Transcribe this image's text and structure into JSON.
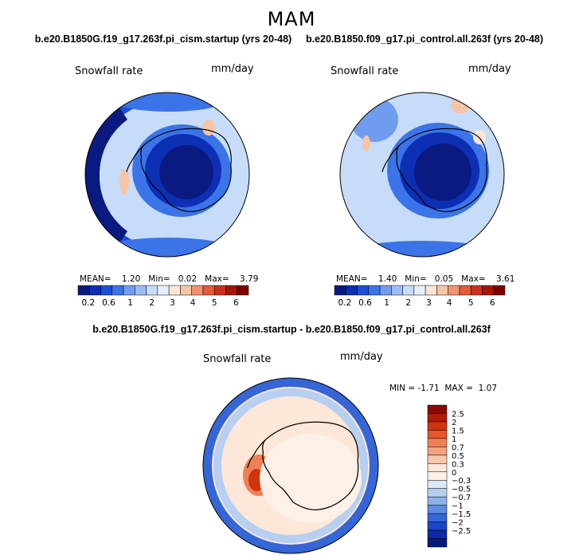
{
  "season": "MAM",
  "panels": [
    {
      "title": "b.e20.B1850G.f19_g17.263f.pi_cism.startup (yrs 20-48)",
      "variable": "Snowfall rate",
      "units": "mm/day",
      "mean_label": "MEAN=",
      "mean_value": "1.20",
      "min_label": "Min=",
      "min_value": "0.02",
      "max_label": "Max=",
      "max_value": "3.79"
    },
    {
      "title": "b.e20.B1850.f09_g17.pi_control.all.263f (yrs 20-48)",
      "variable": "Snowfall rate",
      "units": "mm/day",
      "mean_label": "MEAN=",
      "mean_value": "1.40",
      "min_label": "Min=",
      "min_value": "0.05",
      "max_label": "Max=",
      "max_value": "3.61"
    }
  ],
  "diff_panel": {
    "title": "b.e20.B1850G.f19_g17.263f.pi_cism.startup - b.e20.B1850.f09_g17.pi_control.all.263f",
    "variable": "Snowfall rate",
    "units": "mm/day",
    "min_label": "MIN =",
    "min_value": "-1.71",
    "max_label": "MAX =",
    "max_value": "1.07"
  },
  "chart_data": [
    {
      "type": "heatmap",
      "projection": "south-polar-stereographic",
      "title": "b.e20.B1850G.f19_g17.263f.pi_cism.startup (yrs 20-48)",
      "variable": "Snowfall rate",
      "units": "mm/day",
      "mean": 1.2,
      "min": 0.02,
      "max": 3.79,
      "levels": [
        0.2,
        0.6,
        1,
        1.5,
        2,
        2.5,
        3,
        3.5,
        4,
        4.5,
        5,
        5.5,
        6
      ],
      "level_labels": [
        "0.2",
        "0.6",
        "1",
        "2",
        "3",
        "4",
        "5",
        "6"
      ],
      "colorbar": [
        "#0a1a80",
        "#0d2fb4",
        "#1a4fd8",
        "#3b74e8",
        "#6f9cef",
        "#9cbdf4",
        "#c7dcf8",
        "#e6effa",
        "#fde6d6",
        "#f8c4a6",
        "#f3926c",
        "#e45a3a",
        "#c9311c",
        "#a31608",
        "#7a0000"
      ],
      "colorbar_orientation": "horizontal"
    },
    {
      "type": "heatmap",
      "projection": "south-polar-stereographic",
      "title": "b.e20.B1850.f09_g17.pi_control.all.263f (yrs 20-48)",
      "variable": "Snowfall rate",
      "units": "mm/day",
      "mean": 1.4,
      "min": 0.05,
      "max": 3.61,
      "levels": [
        0.2,
        0.6,
        1,
        1.5,
        2,
        2.5,
        3,
        3.5,
        4,
        4.5,
        5,
        5.5,
        6
      ],
      "level_labels": [
        "0.2",
        "0.6",
        "1",
        "2",
        "3",
        "4",
        "5",
        "6"
      ],
      "colorbar": [
        "#0a1a80",
        "#0d2fb4",
        "#1a4fd8",
        "#3b74e8",
        "#6f9cef",
        "#9cbdf4",
        "#c7dcf8",
        "#e6effa",
        "#fde6d6",
        "#f8c4a6",
        "#f3926c",
        "#e45a3a",
        "#c9311c",
        "#a31608",
        "#7a0000"
      ],
      "colorbar_orientation": "horizontal"
    },
    {
      "type": "heatmap",
      "projection": "south-polar-stereographic",
      "title": "b.e20.B1850G.f19_g17.263f.pi_cism.startup - b.e20.B1850.f09_g17.pi_control.all.263f",
      "variable": "Snowfall rate",
      "units": "mm/day",
      "min": -1.71,
      "max": 1.07,
      "levels": [
        -2.5,
        -2,
        -1.5,
        -1,
        -0.7,
        -0.5,
        -0.3,
        0,
        0.3,
        0.5,
        0.7,
        1,
        1.5,
        2,
        2.5
      ],
      "level_labels": [
        "2.5",
        "2",
        "1.5",
        "1",
        "0.7",
        "0.5",
        "0.3",
        "0",
        "−0.3",
        "−0.5",
        "−0.7",
        "−1",
        "−1.5",
        "−2",
        "−2.5"
      ],
      "colorbar": [
        "#8b0a00",
        "#b01a06",
        "#d2330f",
        "#e8562a",
        "#f07f55",
        "#f5a37f",
        "#f9c8ab",
        "#fde7d8",
        "#fdf0e6",
        "#dde9f7",
        "#b7cff1",
        "#8fb1ea",
        "#5f8ce2",
        "#3566d8",
        "#1a45c6",
        "#0a2aa8",
        "#061a78"
      ],
      "colorbar_orientation": "vertical"
    }
  ]
}
